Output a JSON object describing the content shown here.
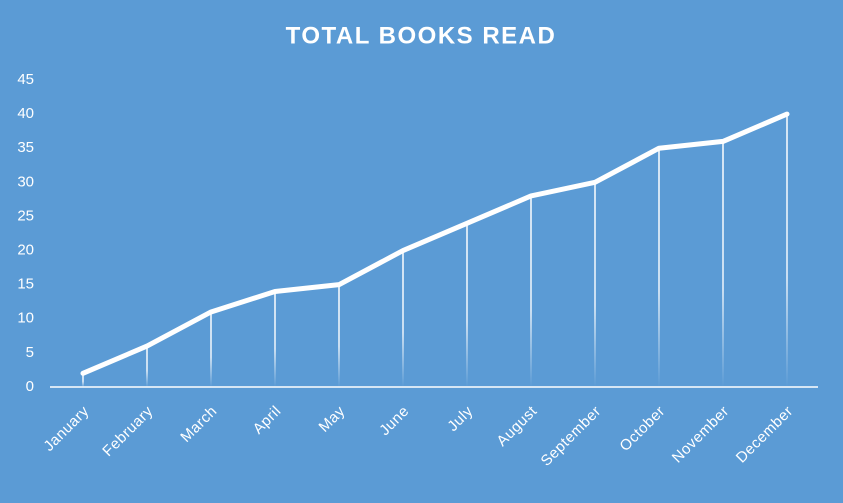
{
  "chart_data": {
    "type": "line",
    "title": "TOTAL BOOKS READ",
    "categories": [
      "January",
      "February",
      "March",
      "April",
      "May",
      "June",
      "July",
      "August",
      "September",
      "October",
      "November",
      "December"
    ],
    "values": [
      2,
      6,
      11,
      14,
      15,
      20,
      24,
      28,
      30,
      35,
      36,
      40
    ],
    "color": "#ffffff",
    "ylim": [
      0,
      45
    ],
    "yticks": [
      0,
      5,
      10,
      15,
      20,
      25,
      30,
      35,
      40,
      45
    ],
    "grid": false,
    "drop_lines": true
  }
}
